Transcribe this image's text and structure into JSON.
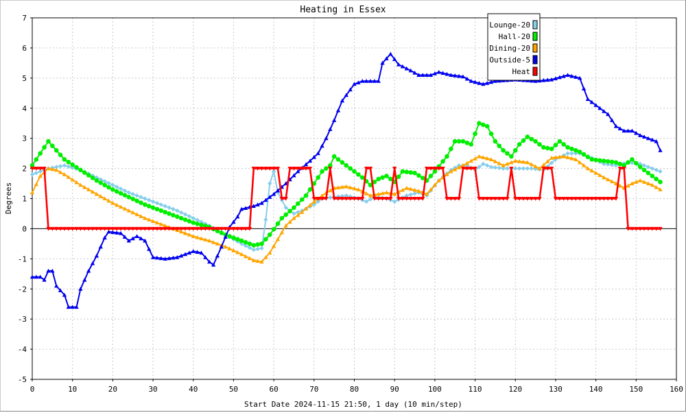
{
  "chart_data": {
    "type": "line",
    "title": "Heating in Essex",
    "xlabel": "Start Date 2024-11-15 21:50, 1 day (10 min/step)",
    "ylabel": "Degrees",
    "xlim": [
      0,
      160
    ],
    "ylim": [
      -5,
      7
    ],
    "xticks": [
      0,
      10,
      20,
      30,
      40,
      50,
      60,
      70,
      80,
      90,
      100,
      110,
      120,
      130,
      140,
      150,
      160
    ],
    "yticks": [
      -5,
      -4,
      -3,
      -2,
      -1,
      0,
      1,
      2,
      3,
      4,
      5,
      6,
      7
    ],
    "grid": true,
    "legend": "top-right",
    "series": [
      {
        "name": "Lounge-20",
        "color": "#87ceeb",
        "marker": "diamond",
        "points": [
          [
            0,
            1.8
          ],
          [
            4,
            2.0
          ],
          [
            8,
            2.1
          ],
          [
            12,
            1.95
          ],
          [
            16,
            1.7
          ],
          [
            20,
            1.45
          ],
          [
            24,
            1.2
          ],
          [
            28,
            1.0
          ],
          [
            32,
            0.8
          ],
          [
            36,
            0.6
          ],
          [
            40,
            0.35
          ],
          [
            44,
            0.1
          ],
          [
            48,
            -0.2
          ],
          [
            52,
            -0.5
          ],
          [
            55,
            -0.7
          ],
          [
            57,
            -0.65
          ],
          [
            58,
            0.3
          ],
          [
            59,
            1.5
          ],
          [
            60,
            1.9
          ],
          [
            61,
            1.2
          ],
          [
            63,
            0.7
          ],
          [
            65,
            0.5
          ],
          [
            67,
            0.6
          ],
          [
            70,
            0.8
          ],
          [
            72,
            1.0
          ],
          [
            75,
            1.05
          ],
          [
            78,
            1.1
          ],
          [
            81,
            1.0
          ],
          [
            83,
            0.9
          ],
          [
            85,
            1.05
          ],
          [
            88,
            1.0
          ],
          [
            90,
            0.9
          ],
          [
            93,
            1.1
          ],
          [
            96,
            1.2
          ],
          [
            98,
            1.1
          ],
          [
            101,
            1.6
          ],
          [
            104,
            1.95
          ],
          [
            106,
            2.1
          ],
          [
            108,
            2.1
          ],
          [
            110,
            1.95
          ],
          [
            112,
            2.15
          ],
          [
            114,
            2.05
          ],
          [
            117,
            2.0
          ],
          [
            120,
            2.0
          ],
          [
            124,
            2.0
          ],
          [
            127,
            1.95
          ],
          [
            130,
            2.3
          ],
          [
            133,
            2.5
          ],
          [
            136,
            2.5
          ],
          [
            139,
            2.35
          ],
          [
            142,
            2.15
          ],
          [
            145,
            2.1
          ],
          [
            148,
            2.2
          ],
          [
            151,
            2.15
          ],
          [
            154,
            2.0
          ],
          [
            156,
            1.9
          ]
        ]
      },
      {
        "name": "Hall-20",
        "color": "#00ee00",
        "marker": "circle",
        "points": [
          [
            0,
            2.1
          ],
          [
            2,
            2.5
          ],
          [
            4,
            2.9
          ],
          [
            6,
            2.6
          ],
          [
            8,
            2.3
          ],
          [
            12,
            1.95
          ],
          [
            16,
            1.6
          ],
          [
            20,
            1.3
          ],
          [
            24,
            1.05
          ],
          [
            28,
            0.8
          ],
          [
            32,
            0.6
          ],
          [
            36,
            0.4
          ],
          [
            40,
            0.2
          ],
          [
            44,
            0.05
          ],
          [
            48,
            -0.2
          ],
          [
            52,
            -0.4
          ],
          [
            55,
            -0.55
          ],
          [
            57,
            -0.5
          ],
          [
            59,
            -0.2
          ],
          [
            62,
            0.35
          ],
          [
            65,
            0.7
          ],
          [
            68,
            1.1
          ],
          [
            70,
            1.5
          ],
          [
            72,
            1.9
          ],
          [
            74,
            2.1
          ],
          [
            75,
            2.4
          ],
          [
            77,
            2.2
          ],
          [
            80,
            1.9
          ],
          [
            82,
            1.7
          ],
          [
            84,
            1.45
          ],
          [
            86,
            1.65
          ],
          [
            88,
            1.75
          ],
          [
            90,
            1.55
          ],
          [
            92,
            1.9
          ],
          [
            95,
            1.85
          ],
          [
            98,
            1.6
          ],
          [
            100,
            1.9
          ],
          [
            103,
            2.4
          ],
          [
            105,
            2.9
          ],
          [
            107,
            2.9
          ],
          [
            109,
            2.8
          ],
          [
            111,
            3.5
          ],
          [
            113,
            3.4
          ],
          [
            115,
            2.9
          ],
          [
            117,
            2.6
          ],
          [
            119,
            2.4
          ],
          [
            121,
            2.8
          ],
          [
            123,
            3.05
          ],
          [
            125,
            2.9
          ],
          [
            127,
            2.7
          ],
          [
            129,
            2.65
          ],
          [
            131,
            2.9
          ],
          [
            133,
            2.7
          ],
          [
            136,
            2.55
          ],
          [
            139,
            2.3
          ],
          [
            142,
            2.25
          ],
          [
            145,
            2.2
          ],
          [
            147,
            2.1
          ],
          [
            149,
            2.3
          ],
          [
            151,
            2.05
          ],
          [
            154,
            1.75
          ],
          [
            156,
            1.55
          ]
        ]
      },
      {
        "name": "Dining-20",
        "color": "#ffa500",
        "marker": "triangle",
        "points": [
          [
            0,
            1.2
          ],
          [
            2,
            1.75
          ],
          [
            4,
            2.0
          ],
          [
            6,
            1.95
          ],
          [
            8,
            1.8
          ],
          [
            12,
            1.45
          ],
          [
            16,
            1.15
          ],
          [
            20,
            0.85
          ],
          [
            24,
            0.6
          ],
          [
            28,
            0.35
          ],
          [
            32,
            0.15
          ],
          [
            36,
            -0.05
          ],
          [
            40,
            -0.25
          ],
          [
            44,
            -0.4
          ],
          [
            48,
            -0.6
          ],
          [
            52,
            -0.85
          ],
          [
            55,
            -1.05
          ],
          [
            57,
            -1.1
          ],
          [
            59,
            -0.8
          ],
          [
            61,
            -0.35
          ],
          [
            63,
            0.1
          ],
          [
            65,
            0.35
          ],
          [
            67,
            0.55
          ],
          [
            70,
            0.9
          ],
          [
            72,
            1.1
          ],
          [
            75,
            1.35
          ],
          [
            78,
            1.4
          ],
          [
            81,
            1.3
          ],
          [
            84,
            1.1
          ],
          [
            86,
            1.15
          ],
          [
            88,
            1.2
          ],
          [
            90,
            1.15
          ],
          [
            93,
            1.35
          ],
          [
            96,
            1.25
          ],
          [
            98,
            1.15
          ],
          [
            101,
            1.6
          ],
          [
            104,
            1.9
          ],
          [
            107,
            2.1
          ],
          [
            111,
            2.4
          ],
          [
            114,
            2.3
          ],
          [
            117,
            2.1
          ],
          [
            120,
            2.25
          ],
          [
            123,
            2.2
          ],
          [
            126,
            2.0
          ],
          [
            129,
            2.35
          ],
          [
            132,
            2.4
          ],
          [
            135,
            2.3
          ],
          [
            138,
            2.0
          ],
          [
            142,
            1.7
          ],
          [
            145,
            1.5
          ],
          [
            147,
            1.35
          ],
          [
            149,
            1.5
          ],
          [
            151,
            1.6
          ],
          [
            154,
            1.45
          ],
          [
            156,
            1.3
          ]
        ]
      },
      {
        "name": "Outside-5",
        "color": "#0000ee",
        "marker": "triangle",
        "points": [
          [
            0,
            -1.6
          ],
          [
            2,
            -1.6
          ],
          [
            3,
            -1.7
          ],
          [
            4,
            -1.4
          ],
          [
            5,
            -1.4
          ],
          [
            6,
            -1.9
          ],
          [
            8,
            -2.2
          ],
          [
            9,
            -2.6
          ],
          [
            11,
            -2.6
          ],
          [
            12,
            -2.0
          ],
          [
            14,
            -1.4
          ],
          [
            16,
            -0.9
          ],
          [
            18,
            -0.3
          ],
          [
            19,
            -0.1
          ],
          [
            22,
            -0.15
          ],
          [
            24,
            -0.4
          ],
          [
            26,
            -0.25
          ],
          [
            28,
            -0.4
          ],
          [
            30,
            -0.95
          ],
          [
            33,
            -1.0
          ],
          [
            36,
            -0.95
          ],
          [
            38,
            -0.85
          ],
          [
            40,
            -0.75
          ],
          [
            42,
            -0.8
          ],
          [
            44,
            -1.1
          ],
          [
            45,
            -1.2
          ],
          [
            47,
            -0.6
          ],
          [
            49,
            0.05
          ],
          [
            51,
            0.4
          ],
          [
            52,
            0.65
          ],
          [
            55,
            0.75
          ],
          [
            57,
            0.85
          ],
          [
            60,
            1.15
          ],
          [
            63,
            1.5
          ],
          [
            66,
            1.9
          ],
          [
            69,
            2.25
          ],
          [
            71,
            2.5
          ],
          [
            73,
            3.0
          ],
          [
            75,
            3.6
          ],
          [
            77,
            4.25
          ],
          [
            80,
            4.8
          ],
          [
            82,
            4.9
          ],
          [
            86,
            4.9
          ],
          [
            87,
            5.5
          ],
          [
            89,
            5.8
          ],
          [
            91,
            5.45
          ],
          [
            94,
            5.25
          ],
          [
            96,
            5.1
          ],
          [
            99,
            5.1
          ],
          [
            101,
            5.2
          ],
          [
            104,
            5.1
          ],
          [
            107,
            5.05
          ],
          [
            109,
            4.9
          ],
          [
            112,
            4.8
          ],
          [
            115,
            4.9
          ],
          [
            120,
            4.95
          ],
          [
            125,
            4.9
          ],
          [
            129,
            4.95
          ],
          [
            133,
            5.1
          ],
          [
            136,
            5.0
          ],
          [
            138,
            4.3
          ],
          [
            141,
            4.0
          ],
          [
            143,
            3.8
          ],
          [
            145,
            3.4
          ],
          [
            147,
            3.25
          ],
          [
            149,
            3.25
          ],
          [
            151,
            3.1
          ],
          [
            153,
            3.0
          ],
          [
            155,
            2.9
          ],
          [
            156,
            2.6
          ]
        ]
      },
      {
        "name": "Heat",
        "color": "#ff0000",
        "marker": "triangle-down",
        "points": [
          [
            0,
            2.0
          ],
          [
            3,
            2.0
          ],
          [
            4,
            0.0
          ],
          [
            54,
            0.0
          ],
          [
            55,
            2.0
          ],
          [
            61,
            2.0
          ],
          [
            62,
            1.0
          ],
          [
            63,
            1.0
          ],
          [
            64,
            2.0
          ],
          [
            69,
            2.0
          ],
          [
            70,
            1.0
          ],
          [
            73,
            1.0
          ],
          [
            74,
            2.0
          ],
          [
            75,
            1.0
          ],
          [
            82,
            1.0
          ],
          [
            83,
            2.0
          ],
          [
            84,
            2.0
          ],
          [
            85,
            1.0
          ],
          [
            89,
            1.0
          ],
          [
            90,
            2.0
          ],
          [
            91,
            1.0
          ],
          [
            97,
            1.0
          ],
          [
            98,
            2.0
          ],
          [
            102,
            2.0
          ],
          [
            103,
            1.0
          ],
          [
            106,
            1.0
          ],
          [
            107,
            2.0
          ],
          [
            110,
            2.0
          ],
          [
            111,
            1.0
          ],
          [
            118,
            1.0
          ],
          [
            119,
            2.0
          ],
          [
            120,
            1.0
          ],
          [
            126,
            1.0
          ],
          [
            127,
            2.0
          ],
          [
            129,
            2.0
          ],
          [
            130,
            1.0
          ],
          [
            145,
            1.0
          ],
          [
            146,
            2.0
          ],
          [
            147,
            2.0
          ],
          [
            148,
            0.0
          ],
          [
            156,
            0.0
          ]
        ]
      }
    ]
  }
}
